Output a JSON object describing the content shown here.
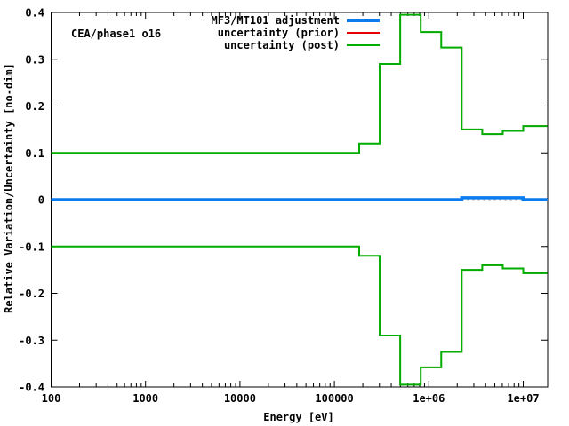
{
  "annotation": "CEA/phase1 o16",
  "axes": {
    "x_label": "Energy [eV]",
    "y_label": "Relative Variation/Uncertainty [no-dim]",
    "x_ticks": [
      {
        "value": 100,
        "label": "100"
      },
      {
        "value": 1000,
        "label": "1000"
      },
      {
        "value": 10000,
        "label": "10000"
      },
      {
        "value": 100000,
        "label": "100000"
      },
      {
        "value": 1000000,
        "label": "1e+06"
      },
      {
        "value": 10000000,
        "label": "1e+07"
      }
    ],
    "y_ticks": [
      {
        "value": 0.4,
        "label": "0.4"
      },
      {
        "value": 0.3,
        "label": "0.3"
      },
      {
        "value": 0.2,
        "label": "0.2"
      },
      {
        "value": 0.1,
        "label": "0.1"
      },
      {
        "value": 0,
        "label": "0"
      },
      {
        "value": -0.1,
        "label": "-0.1"
      },
      {
        "value": -0.2,
        "label": "-0.2"
      },
      {
        "value": -0.3,
        "label": "-0.3"
      },
      {
        "value": -0.4,
        "label": "-0.4"
      }
    ]
  },
  "legend": {
    "items": [
      {
        "label": "MF3/MT101 adjustment",
        "color": "#0a7cf0",
        "sample_thickness": 4
      },
      {
        "label": "uncertainty (prior)",
        "color": "#e60000",
        "sample_thickness": 2
      },
      {
        "label": "uncertainty (post)",
        "color": "#00ad00",
        "sample_thickness": 2
      }
    ]
  },
  "chart_data": {
    "type": "line",
    "subtype": "step-function-log-x",
    "title": "",
    "annotation": "CEA/phase1 o16",
    "xlabel": "Energy [eV]",
    "ylabel": "Relative Variation/Uncertainty [no-dim]",
    "xscale": "log",
    "xlim": [
      100,
      18000000
    ],
    "ylim": [
      -0.4,
      0.4
    ],
    "grid": false,
    "legend_position": "top-right-inside",
    "x_group_boundaries_eV": [
      100,
      183160,
      301970,
      497870,
      820850,
      1353400,
      2231300,
      3678800,
      6065300,
      10000000,
      18000000
    ],
    "zero_line": {
      "value": 0,
      "color": "#b8b8b8",
      "style": "dotted"
    },
    "series": [
      {
        "name": "uncertainty (prior) upper",
        "color": "#e60000",
        "width": 1.5,
        "step_values": [
          0.1,
          0.12,
          0.29,
          0.395,
          0.358,
          0.325,
          0.15,
          0.14,
          0.147,
          0.157
        ]
      },
      {
        "name": "uncertainty (prior) lower",
        "color": "#e60000",
        "width": 1.5,
        "step_values": [
          -0.1,
          -0.12,
          -0.29,
          -0.395,
          -0.358,
          -0.325,
          -0.15,
          -0.14,
          -0.147,
          -0.157
        ]
      },
      {
        "name": "uncertainty (post) upper",
        "color": "#00ad00",
        "width": 2,
        "step_values": [
          0.1,
          0.12,
          0.29,
          0.395,
          0.358,
          0.325,
          0.15,
          0.14,
          0.147,
          0.157
        ]
      },
      {
        "name": "uncertainty (post) lower",
        "color": "#00ad00",
        "width": 2,
        "step_values": [
          -0.1,
          -0.12,
          -0.29,
          -0.395,
          -0.358,
          -0.325,
          -0.15,
          -0.14,
          -0.147,
          -0.157
        ]
      },
      {
        "name": "MF3/MT101 adjustment",
        "color": "#0a7cf0",
        "width": 3.5,
        "step_values": [
          0,
          0,
          0,
          0,
          0,
          0,
          0.004,
          0.004,
          0.004,
          0
        ]
      }
    ]
  }
}
